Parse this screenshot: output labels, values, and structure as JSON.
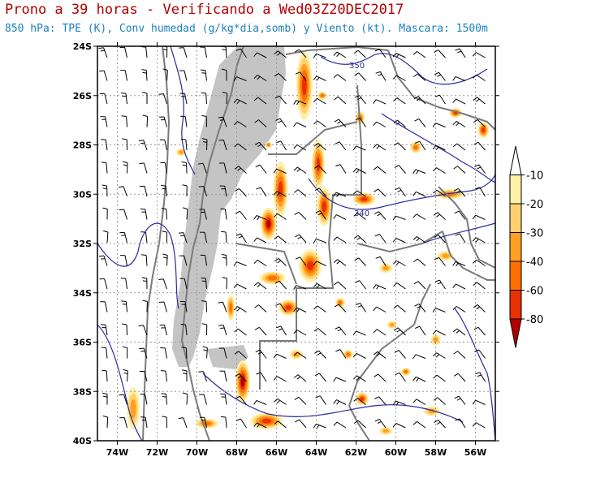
{
  "title": "Prono a 39 horas - Verificando a Wed03Z20DEC2017",
  "subtitle": "850 hPa: TPE (K), Conv humedad (g/kg*dia,somb) y Viento (kt). Mascara: 1500m",
  "map": {
    "lon_range": [
      -75,
      -55
    ],
    "lat_range": [
      -40,
      -24
    ],
    "lat_ticks": [
      "24S",
      "26S",
      "28S",
      "30S",
      "32S",
      "34S",
      "36S",
      "38S",
      "40S"
    ],
    "lon_ticks": [
      "74W",
      "72W",
      "70W",
      "68W",
      "66W",
      "64W",
      "62W",
      "60W",
      "58W",
      "56W"
    ],
    "contour_labels": [
      "350",
      "340"
    ],
    "colors": {
      "frame": "#000000",
      "grid": "#9a9a9a",
      "mask": "#c4c4c4",
      "border": "#7a7a7a",
      "contour": "#2a2aa0"
    }
  },
  "colorbar": {
    "labels": [
      "-10",
      "-20",
      "-30",
      "-40",
      "-60",
      "-80"
    ],
    "colors": [
      "#ffffff",
      "#fff0a8",
      "#ffd070",
      "#ffa020",
      "#ff7000",
      "#e83000",
      "#b00000"
    ]
  },
  "fields": {
    "convergence": [
      {
        "lon": -64.6,
        "lat": -25.6,
        "rx": 10,
        "ry": 42,
        "level": 5
      },
      {
        "lon": -63.9,
        "lat": -28.8,
        "rx": 8,
        "ry": 30,
        "level": 5
      },
      {
        "lon": -63.6,
        "lat": -30.5,
        "rx": 9,
        "ry": 24,
        "level": 5
      },
      {
        "lon": -65.8,
        "lat": -29.8,
        "rx": 9,
        "ry": 34,
        "level": 5
      },
      {
        "lon": -66.4,
        "lat": -31.2,
        "rx": 10,
        "ry": 20,
        "level": 6
      },
      {
        "lon": -64.3,
        "lat": -32.9,
        "rx": 14,
        "ry": 20,
        "level": 5
      },
      {
        "lon": -66.2,
        "lat": -33.4,
        "rx": 16,
        "ry": 8,
        "level": 4
      },
      {
        "lon": -65.4,
        "lat": -34.6,
        "rx": 12,
        "ry": 10,
        "level": 5
      },
      {
        "lon": -67.7,
        "lat": -37.6,
        "rx": 9,
        "ry": 26,
        "level": 6
      },
      {
        "lon": -66.5,
        "lat": -39.2,
        "rx": 20,
        "ry": 10,
        "level": 5
      },
      {
        "lon": -68.3,
        "lat": -34.6,
        "rx": 5,
        "ry": 16,
        "level": 4
      },
      {
        "lon": -61.6,
        "lat": -30.2,
        "rx": 14,
        "ry": 8,
        "level": 5
      },
      {
        "lon": -57.3,
        "lat": -30.0,
        "rx": 18,
        "ry": 6,
        "level": 4
      },
      {
        "lon": -59.0,
        "lat": -28.1,
        "rx": 7,
        "ry": 7,
        "level": 4
      },
      {
        "lon": -55.6,
        "lat": -27.4,
        "rx": 7,
        "ry": 10,
        "level": 5
      },
      {
        "lon": -57.0,
        "lat": -26.7,
        "rx": 8,
        "ry": 6,
        "level": 5
      },
      {
        "lon": -61.8,
        "lat": -26.9,
        "rx": 6,
        "ry": 8,
        "level": 4
      },
      {
        "lon": -63.7,
        "lat": -26.0,
        "rx": 6,
        "ry": 5,
        "level": 4
      },
      {
        "lon": -61.7,
        "lat": -38.3,
        "rx": 8,
        "ry": 8,
        "level": 5
      },
      {
        "lon": -62.4,
        "lat": -36.5,
        "rx": 6,
        "ry": 6,
        "level": 4
      },
      {
        "lon": -59.5,
        "lat": -37.2,
        "rx": 6,
        "ry": 5,
        "level": 4
      },
      {
        "lon": -62.8,
        "lat": -34.4,
        "rx": 6,
        "ry": 6,
        "level": 4
      },
      {
        "lon": -66.4,
        "lat": -28.0,
        "rx": 4,
        "ry": 4,
        "level": 4
      },
      {
        "lon": -60.5,
        "lat": -33.0,
        "rx": 8,
        "ry": 6,
        "level": 3
      },
      {
        "lon": -57.5,
        "lat": -32.5,
        "rx": 10,
        "ry": 6,
        "level": 3
      },
      {
        "lon": -73.2,
        "lat": -38.7,
        "rx": 8,
        "ry": 26,
        "level": 3
      },
      {
        "lon": -69.5,
        "lat": -39.3,
        "rx": 14,
        "ry": 6,
        "level": 4
      },
      {
        "lon": -58.2,
        "lat": -38.8,
        "rx": 10,
        "ry": 6,
        "level": 3
      },
      {
        "lon": -60.5,
        "lat": -39.6,
        "rx": 8,
        "ry": 5,
        "level": 3
      },
      {
        "lon": -70.8,
        "lat": -28.3,
        "rx": 6,
        "ry": 5,
        "level": 3
      },
      {
        "lon": -65.0,
        "lat": -36.5,
        "rx": 8,
        "ry": 6,
        "level": 3
      },
      {
        "lon": -60.2,
        "lat": -35.3,
        "rx": 6,
        "ry": 5,
        "level": 3
      },
      {
        "lon": -58.0,
        "lat": -35.9,
        "rx": 6,
        "ry": 7,
        "level": 3
      }
    ]
  }
}
